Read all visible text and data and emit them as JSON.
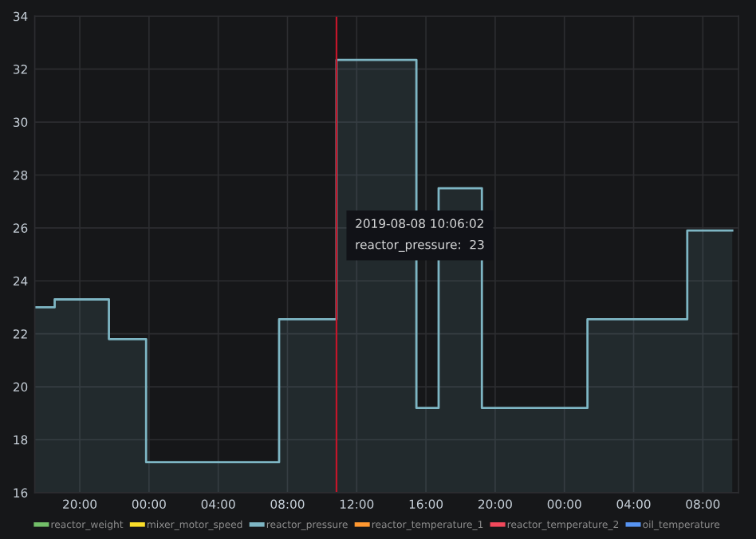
{
  "chart_data": {
    "type": "area",
    "x": [
      "2019-08-07T17:25",
      "2019-08-07T18:33",
      "2019-08-07T18:33",
      "2019-08-07T21:41",
      "2019-08-07T21:41",
      "2019-08-07T23:50",
      "2019-08-07T23:50",
      "2019-08-08T07:31",
      "2019-08-08T07:31",
      "2019-08-08T10:50",
      "2019-08-08T10:50",
      "2019-08-08T15:27",
      "2019-08-08T15:27",
      "2019-08-08T16:44",
      "2019-08-08T16:44",
      "2019-08-08T19:14",
      "2019-08-08T19:14",
      "2019-08-09T01:20",
      "2019-08-09T01:20",
      "2019-08-09T07:06",
      "2019-08-09T07:06",
      "2019-08-09T09:42"
    ],
    "series": [
      {
        "name": "reactor_weight",
        "color": "#73bf69",
        "values": [
          null,
          null,
          null,
          null,
          null,
          null,
          null,
          null,
          null,
          null,
          null,
          null,
          null,
          null,
          null,
          null,
          null,
          null,
          null,
          null,
          null,
          null
        ]
      },
      {
        "name": "mixer_motor_speed",
        "color": "#fade2a",
        "values": [
          null,
          null,
          null,
          null,
          null,
          null,
          null,
          null,
          null,
          null,
          null,
          null,
          null,
          null,
          null,
          null,
          null,
          null,
          null,
          null,
          null,
          null
        ]
      },
      {
        "name": "reactor_pressure",
        "color": "#7eb6c4",
        "values": [
          23.0,
          23.0,
          23.3,
          23.3,
          21.8,
          21.8,
          17.15,
          17.15,
          22.55,
          22.55,
          32.35,
          32.35,
          19.2,
          19.2,
          27.5,
          27.5,
          19.2,
          19.2,
          22.55,
          22.55,
          25.9,
          25.9
        ]
      },
      {
        "name": "reactor_temperature_1",
        "color": "#ff9830",
        "values": [
          null,
          null,
          null,
          null,
          null,
          null,
          null,
          null,
          null,
          null,
          null,
          null,
          null,
          null,
          null,
          null,
          null,
          null,
          null,
          null,
          null,
          null
        ]
      },
      {
        "name": "reactor_temperature_2",
        "color": "#f2495c",
        "values": [
          null,
          null,
          null,
          null,
          null,
          null,
          null,
          null,
          null,
          null,
          null,
          null,
          null,
          null,
          null,
          null,
          null,
          null,
          null,
          null,
          null,
          null
        ]
      },
      {
        "name": "oil_temperature",
        "color": "#5794f2",
        "values": [
          null,
          null,
          null,
          null,
          null,
          null,
          null,
          null,
          null,
          null,
          null,
          null,
          null,
          null,
          null,
          null,
          null,
          null,
          null,
          null,
          null,
          null
        ]
      }
    ],
    "xlim": [
      "2019-08-07T17:24",
      "2019-08-09T10:04"
    ],
    "xticks": [
      {
        "value": "2019-08-07T20:00",
        "label": "20:00"
      },
      {
        "value": "2019-08-08T00:00",
        "label": "00:00"
      },
      {
        "value": "2019-08-08T04:00",
        "label": "04:00"
      },
      {
        "value": "2019-08-08T08:00",
        "label": "08:00"
      },
      {
        "value": "2019-08-08T12:00",
        "label": "12:00"
      },
      {
        "value": "2019-08-08T16:00",
        "label": "16:00"
      },
      {
        "value": "2019-08-08T20:00",
        "label": "20:00"
      },
      {
        "value": "2019-08-09T00:00",
        "label": "00:00"
      },
      {
        "value": "2019-08-09T04:00",
        "label": "04:00"
      },
      {
        "value": "2019-08-09T08:00",
        "label": "08:00"
      }
    ],
    "ylim": [
      16,
      34
    ],
    "yticks": [
      16,
      18,
      20,
      22,
      24,
      26,
      28,
      30,
      32,
      34
    ],
    "grid": true,
    "legend": "bottom",
    "ref_lines": [
      {
        "axis": "x",
        "value": "2019-08-08T10:50",
        "color": "#c4162a"
      }
    ],
    "annotations": [
      "2019-08-08 10:06:02",
      "reactor_pressure:  23"
    ]
  }
}
